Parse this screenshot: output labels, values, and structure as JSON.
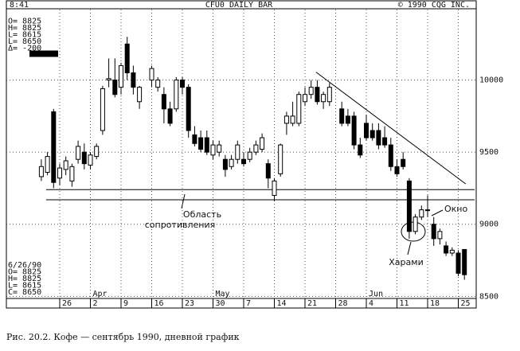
{
  "chart_data": {
    "type": "candlestick",
    "header": {
      "time": "8:41",
      "title": "CFU0 DAILY BAR",
      "copyright": "© 1990 CQG INC."
    },
    "info_top": [
      "O= 8825",
      "H= 8825",
      "L= 8615",
      "L= 8650",
      "Δ= -200"
    ],
    "info_bottom": [
      "6/26/90",
      "O= 8825",
      "H= 8825",
      "L= 8615",
      "C= 8650"
    ],
    "xlim": [
      -1.5,
      71
    ],
    "ylim": [
      8430,
      10500
    ],
    "yticks": [
      10000,
      9500,
      9000,
      8500
    ],
    "xticks": [
      {
        "value": 3,
        "label": "26"
      },
      {
        "value": 8,
        "label": "2"
      },
      {
        "value": 13,
        "label": "9"
      },
      {
        "value": 18,
        "label": "16"
      },
      {
        "value": 23,
        "label": "23"
      },
      {
        "value": 28,
        "label": "30"
      },
      {
        "value": 33,
        "label": "7"
      },
      {
        "value": 38,
        "label": "14"
      },
      {
        "value": 43,
        "label": "21"
      },
      {
        "value": 48,
        "label": "28"
      },
      {
        "value": 53,
        "label": "4"
      },
      {
        "value": 58,
        "label": "11"
      },
      {
        "value": 63,
        "label": "18"
      },
      {
        "value": 68,
        "label": "25"
      }
    ],
    "months": [
      {
        "value": 8,
        "label": "Apr"
      },
      {
        "value": 28,
        "label": "May"
      },
      {
        "value": 53,
        "label": "Jun"
      }
    ],
    "grid": true,
    "series": {
      "x": [
        0,
        1,
        2,
        3,
        4,
        5,
        6,
        7,
        8,
        9,
        10,
        11,
        12,
        13,
        14,
        15,
        16,
        18,
        19,
        20,
        21,
        22,
        23,
        24,
        25,
        26,
        27,
        28,
        29,
        30,
        31,
        32,
        33,
        34,
        35,
        36,
        37,
        38,
        39,
        40,
        41,
        42,
        43,
        44,
        45,
        46,
        47,
        49,
        50,
        51,
        52,
        53,
        54,
        55,
        56,
        57,
        58,
        59,
        60,
        61,
        62,
        63,
        64,
        65,
        66,
        67,
        68,
        69
      ],
      "open": [
        9330,
        9360,
        9780,
        9320,
        9380,
        9300,
        9450,
        9500,
        9410,
        9470,
        9650,
        10000,
        10000,
        9950,
        10250,
        10050,
        9850,
        10000,
        9950,
        9900,
        9800,
        9800,
        10000,
        9950,
        9620,
        9600,
        9600,
        9480,
        9500,
        9450,
        9400,
        9450,
        9450,
        9450,
        9500,
        9520,
        9420,
        9200,
        9350,
        9700,
        9700,
        9700,
        9850,
        9900,
        9950,
        9850,
        9850,
        9800,
        9750,
        9750,
        9550,
        9700,
        9650,
        9650,
        9600,
        9550,
        9400,
        9450,
        9300,
        8950,
        9050,
        9100,
        9000,
        8900,
        8850,
        8800,
        8800,
        8825
      ],
      "high": [
        9450,
        9500,
        9800,
        9420,
        9470,
        9420,
        9580,
        9560,
        9500,
        9560,
        9960,
        10150,
        10150,
        10120,
        10300,
        10100,
        9960,
        10100,
        10020,
        9950,
        9850,
        10020,
        10020,
        9970,
        9680,
        9650,
        9650,
        9580,
        9580,
        9480,
        9480,
        9580,
        9500,
        9530,
        9580,
        9630,
        9450,
        9320,
        9560,
        9780,
        9850,
        9920,
        9950,
        10000,
        10000,
        9920,
        9980,
        9850,
        9800,
        9780,
        9600,
        9760,
        9700,
        9700,
        9680,
        9600,
        9450,
        9500,
        9320,
        9070,
        9130,
        9200,
        9050,
        8970,
        8880,
        8840,
        8820,
        8825
      ],
      "low": [
        9300,
        9340,
        9250,
        9270,
        9340,
        9260,
        9420,
        9380,
        9380,
        9450,
        9620,
        9950,
        9880,
        9900,
        10000,
        9900,
        9800,
        9950,
        9920,
        9700,
        9680,
        9780,
        9900,
        9600,
        9540,
        9500,
        9480,
        9450,
        9470,
        9330,
        9380,
        9420,
        9400,
        9430,
        9480,
        9500,
        9250,
        9160,
        9330,
        9620,
        9680,
        9680,
        9820,
        9870,
        9830,
        9800,
        9820,
        9680,
        9680,
        9520,
        9460,
        9580,
        9580,
        9520,
        9530,
        9370,
        9330,
        9380,
        8900,
        8930,
        9030,
        9050,
        8850,
        8860,
        8780,
        8780,
        8640,
        8615
      ],
      "close": [
        9400,
        9470,
        9290,
        9390,
        9440,
        9400,
        9540,
        9420,
        9480,
        9540,
        9940,
        10010,
        9900,
        10100,
        10050,
        9950,
        9950,
        10080,
        10000,
        9800,
        9700,
        10000,
        9950,
        9650,
        9560,
        9520,
        9500,
        9550,
        9550,
        9380,
        9450,
        9550,
        9420,
        9500,
        9550,
        9600,
        9320,
        9300,
        9550,
        9750,
        9750,
        9900,
        9900,
        9950,
        9850,
        9900,
        9950,
        9700,
        9700,
        9550,
        9480,
        9600,
        9600,
        9550,
        9550,
        9400,
        9350,
        9400,
        8950,
        9050,
        9100,
        9100,
        8900,
        8950,
        8800,
        8820,
        8660,
        8650
      ]
    },
    "resistance_lines": [
      9240,
      9170
    ],
    "trendline": {
      "x": [
        44.8,
        69.2
      ],
      "y": [
        10055,
        9280
      ]
    },
    "annotations": {
      "resistance": [
        "Область",
        "сопротивления"
      ],
      "window": "Окно",
      "harami": "Харами"
    },
    "caption": "Рис. 20.2. Кофе — сентябрь 1990, дневной график"
  }
}
